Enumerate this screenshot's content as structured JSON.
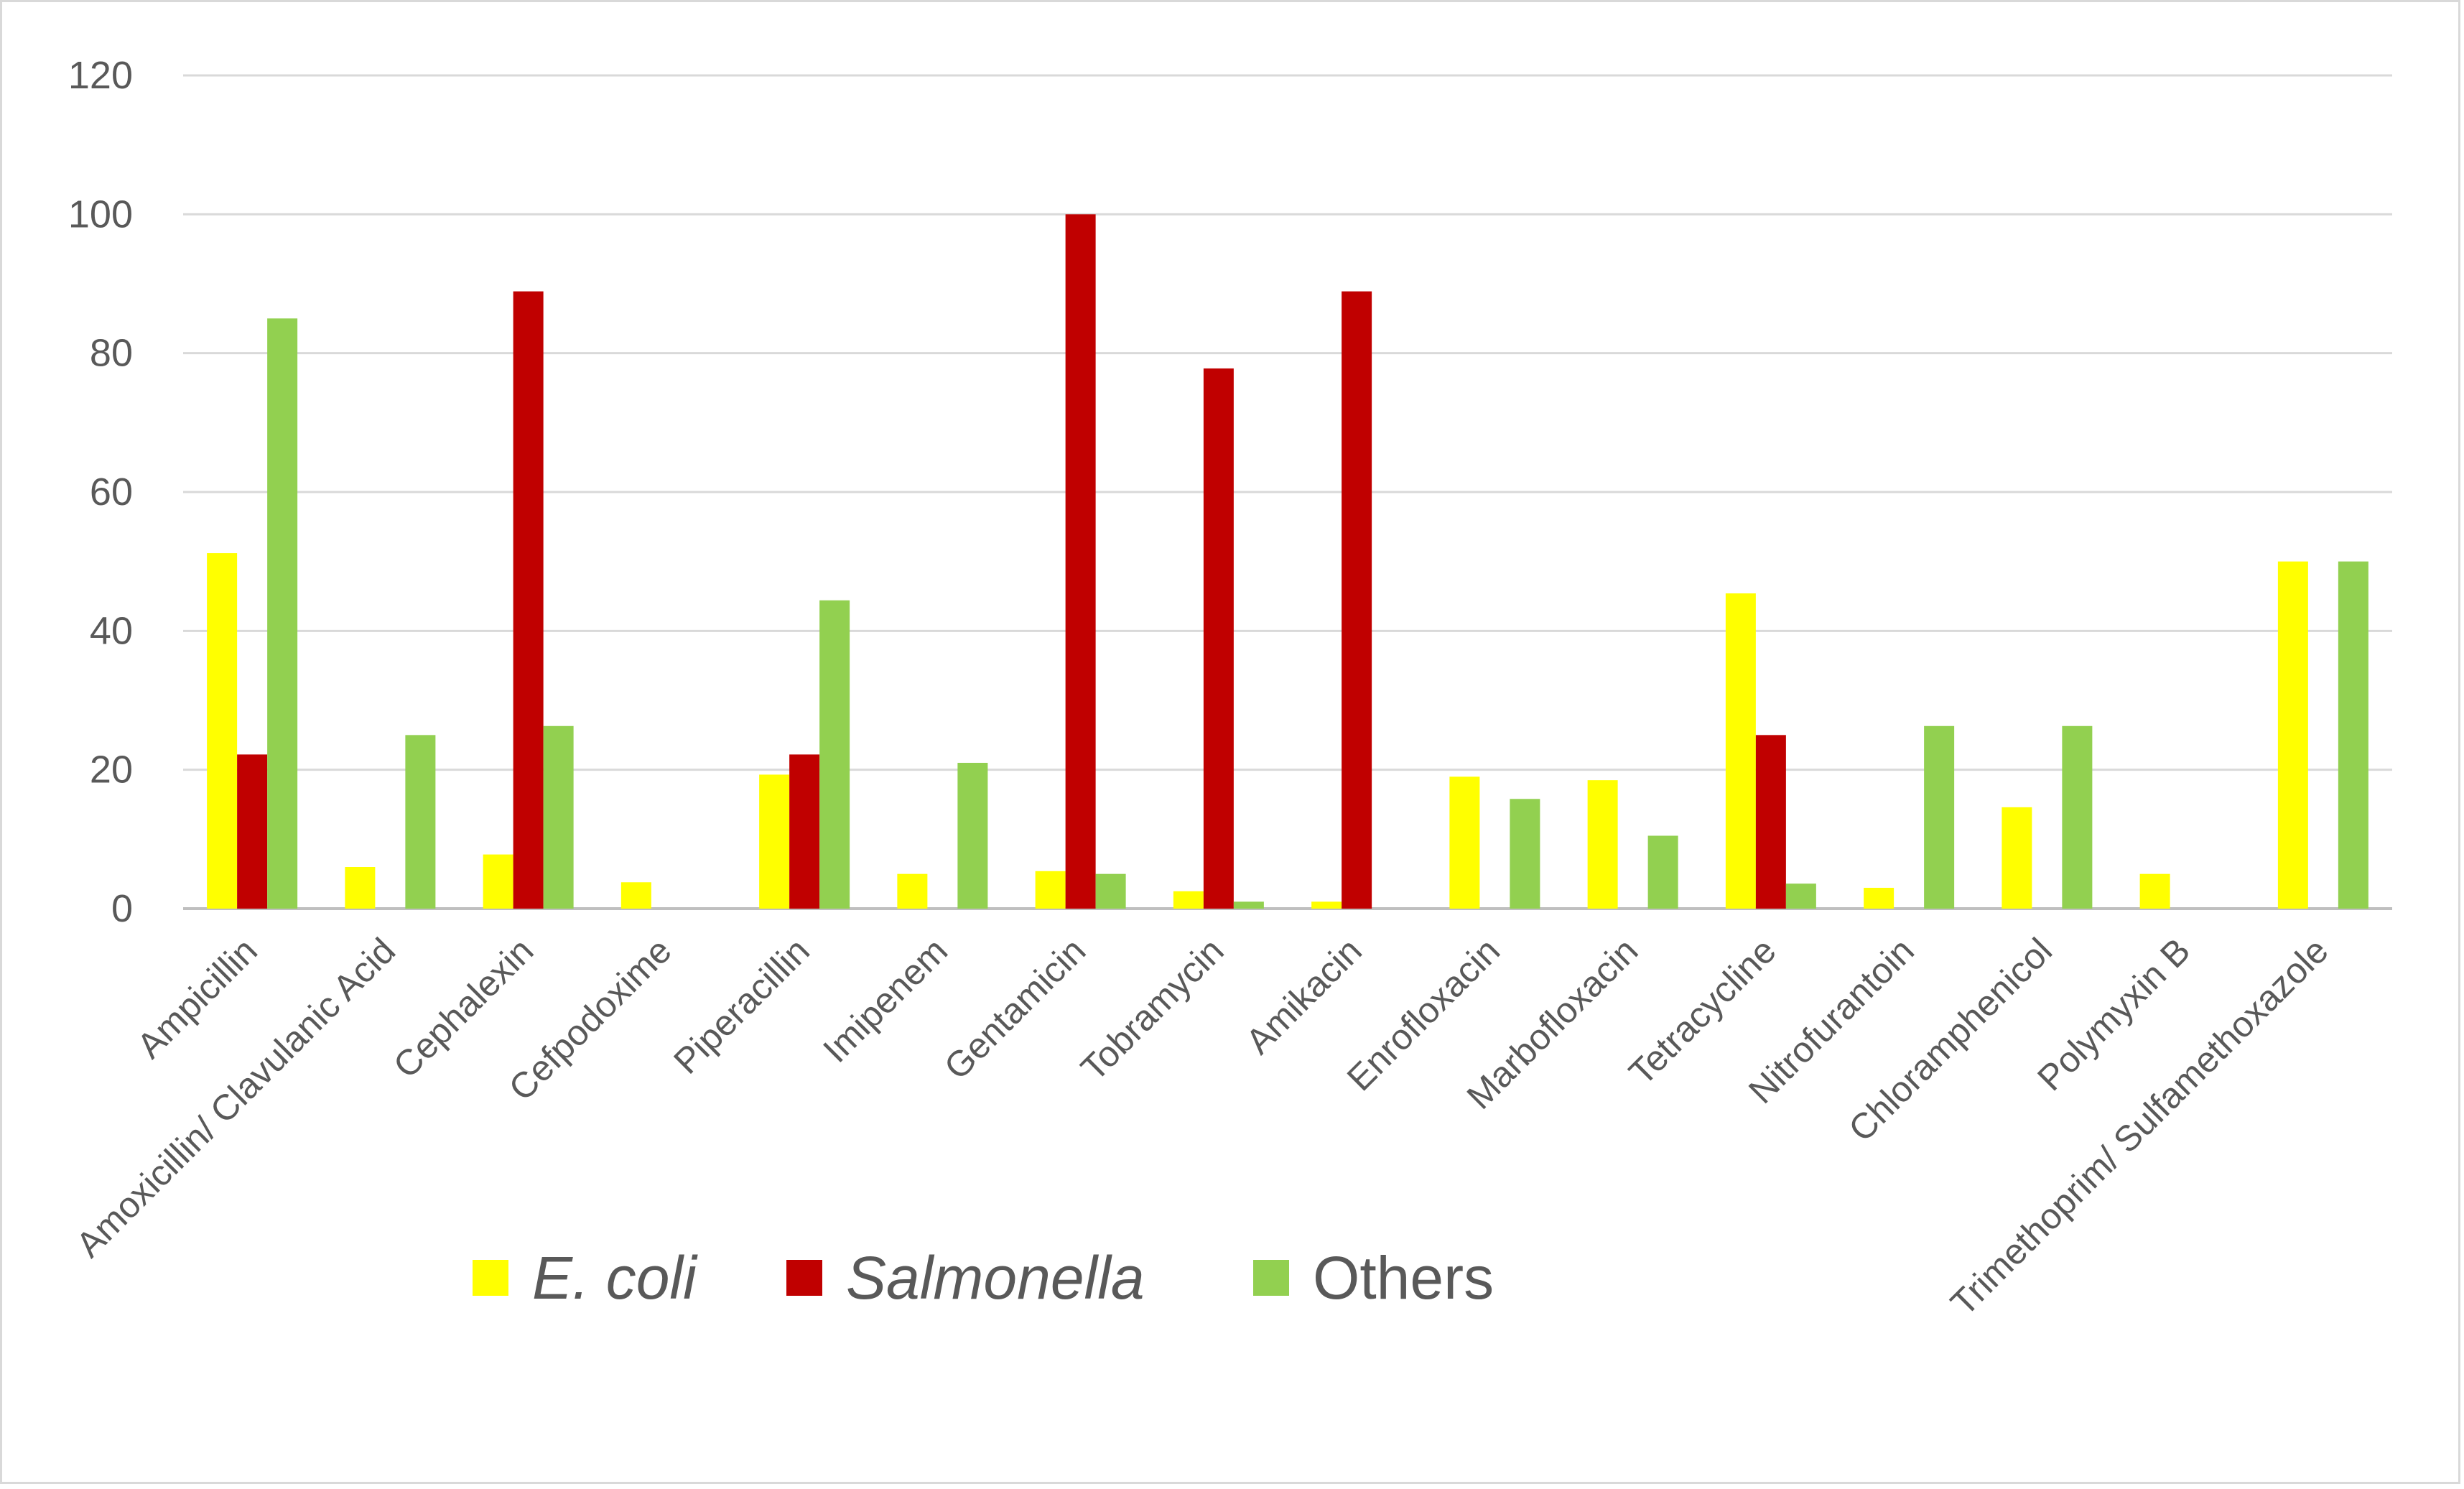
{
  "chart_data": {
    "type": "bar",
    "title": "",
    "xlabel": "",
    "ylabel": "",
    "ylim": [
      0,
      120
    ],
    "yticks": [
      0,
      20,
      40,
      60,
      80,
      100,
      120
    ],
    "grid": true,
    "legend_position": "bottom-left",
    "categories": [
      "Ampicillin",
      "Amoxicillin/ Clavulanic Acid",
      "Cephalexin",
      "Cefpodoxime",
      "Piperacillin",
      "Imipenem",
      "Gentamicin",
      "Tobramycin",
      "Amikacin",
      "Enrofloxacin",
      "Marbofloxacin",
      "Tetracycline",
      "Nitrofurantoin",
      "Chloramphenicol",
      "Polymyxin B",
      "Trimethoprim/ Sulfamethoxazole"
    ],
    "series": [
      {
        "name": "E. coli",
        "italic": true,
        "color": "#ffff00",
        "values": [
          51.2,
          6,
          7.8,
          3.8,
          19.3,
          5,
          5.4,
          2.5,
          1,
          19,
          18.5,
          45.4,
          3,
          14.6,
          5,
          50
        ]
      },
      {
        "name": "Salmonella",
        "italic": true,
        "color": "#c00000",
        "values": [
          22.2,
          0,
          88.9,
          0,
          22.2,
          0,
          100,
          77.8,
          88.9,
          0,
          0,
          25,
          0,
          0,
          0,
          0
        ]
      },
      {
        "name": "Others",
        "italic": false,
        "color": "#92d050",
        "values": [
          85,
          25,
          26.3,
          0,
          44.4,
          21,
          5,
          1,
          0,
          15.8,
          10.5,
          3.6,
          26.3,
          26.3,
          0,
          50
        ]
      }
    ]
  }
}
